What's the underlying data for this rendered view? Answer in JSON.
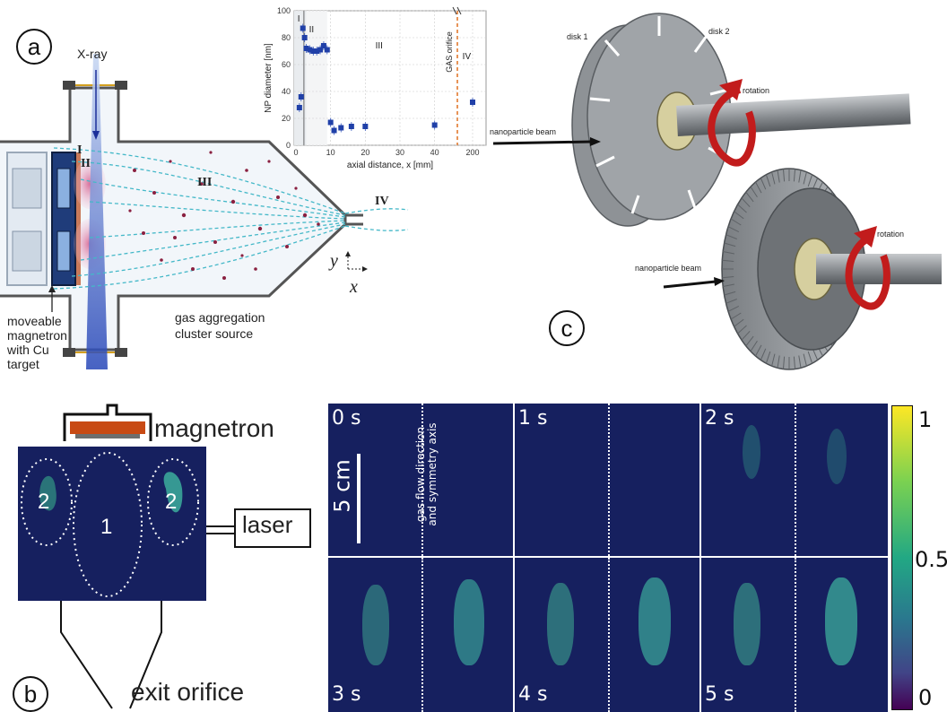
{
  "panels": {
    "a": "a",
    "b": "b",
    "c": "c"
  },
  "panel_a": {
    "xray_label": "X-ray",
    "region_labels": [
      "I",
      "II",
      "III",
      "IV"
    ],
    "magnetron_label_lines": [
      "moveable",
      "magnetron",
      "with Cu",
      "target"
    ],
    "source_label_lines": [
      "gas aggregation",
      "cluster source"
    ],
    "axis_y": "y",
    "axis_x": "x"
  },
  "chart_data": {
    "type": "scatter",
    "xlabel": "axial distance, x [mm]",
    "ylabel": "NP diameter [nm]",
    "xticks": [
      "0",
      "10",
      "20",
      "30",
      "40",
      "200"
    ],
    "yticks": [
      "0",
      "20",
      "40",
      "60",
      "80",
      "100"
    ],
    "ylim": [
      0,
      100
    ],
    "xaxis_break": true,
    "region_labels": [
      "I",
      "II",
      "III",
      "IV"
    ],
    "orifice_label": "GAS orifice",
    "grid": true,
    "series": [
      {
        "points": [
          {
            "x": 1,
            "y": 28
          },
          {
            "x": 1.5,
            "y": 36
          },
          {
            "x": 2,
            "y": 87
          },
          {
            "x": 2.5,
            "y": 80
          },
          {
            "x": 3,
            "y": 72
          },
          {
            "x": 4,
            "y": 71
          },
          {
            "x": 5,
            "y": 70
          },
          {
            "x": 6,
            "y": 70
          },
          {
            "x": 7,
            "y": 71
          },
          {
            "x": 8,
            "y": 74
          },
          {
            "x": 9,
            "y": 71
          },
          {
            "x": 10,
            "y": 17
          },
          {
            "x": 11,
            "y": 11
          },
          {
            "x": 13,
            "y": 13
          },
          {
            "x": 16,
            "y": 14
          },
          {
            "x": 20,
            "y": 14
          },
          {
            "x": 40,
            "y": 15
          },
          {
            "x": 200,
            "y": 32
          }
        ]
      }
    ]
  },
  "panel_c": {
    "disk1": "disk 1",
    "disk2": "disk 2",
    "rotation": "rotation",
    "beam": "nanoparticle beam"
  },
  "panel_b": {
    "magnetron": "magnetron",
    "laser": "laser",
    "exit": "exit orifice",
    "region1": "1",
    "region2": "2",
    "scale": "5 cm",
    "flow_axis_lines": [
      "gas flow direction",
      "and symmetry axis"
    ],
    "frames": [
      "0 s",
      "1 s",
      "2 s",
      "3 s",
      "4 s",
      "5 s"
    ],
    "colorbar_ticks": [
      "1",
      "0.5",
      "0"
    ],
    "colors": {
      "background": "#16205f",
      "plume": "#3fb6a0"
    }
  }
}
